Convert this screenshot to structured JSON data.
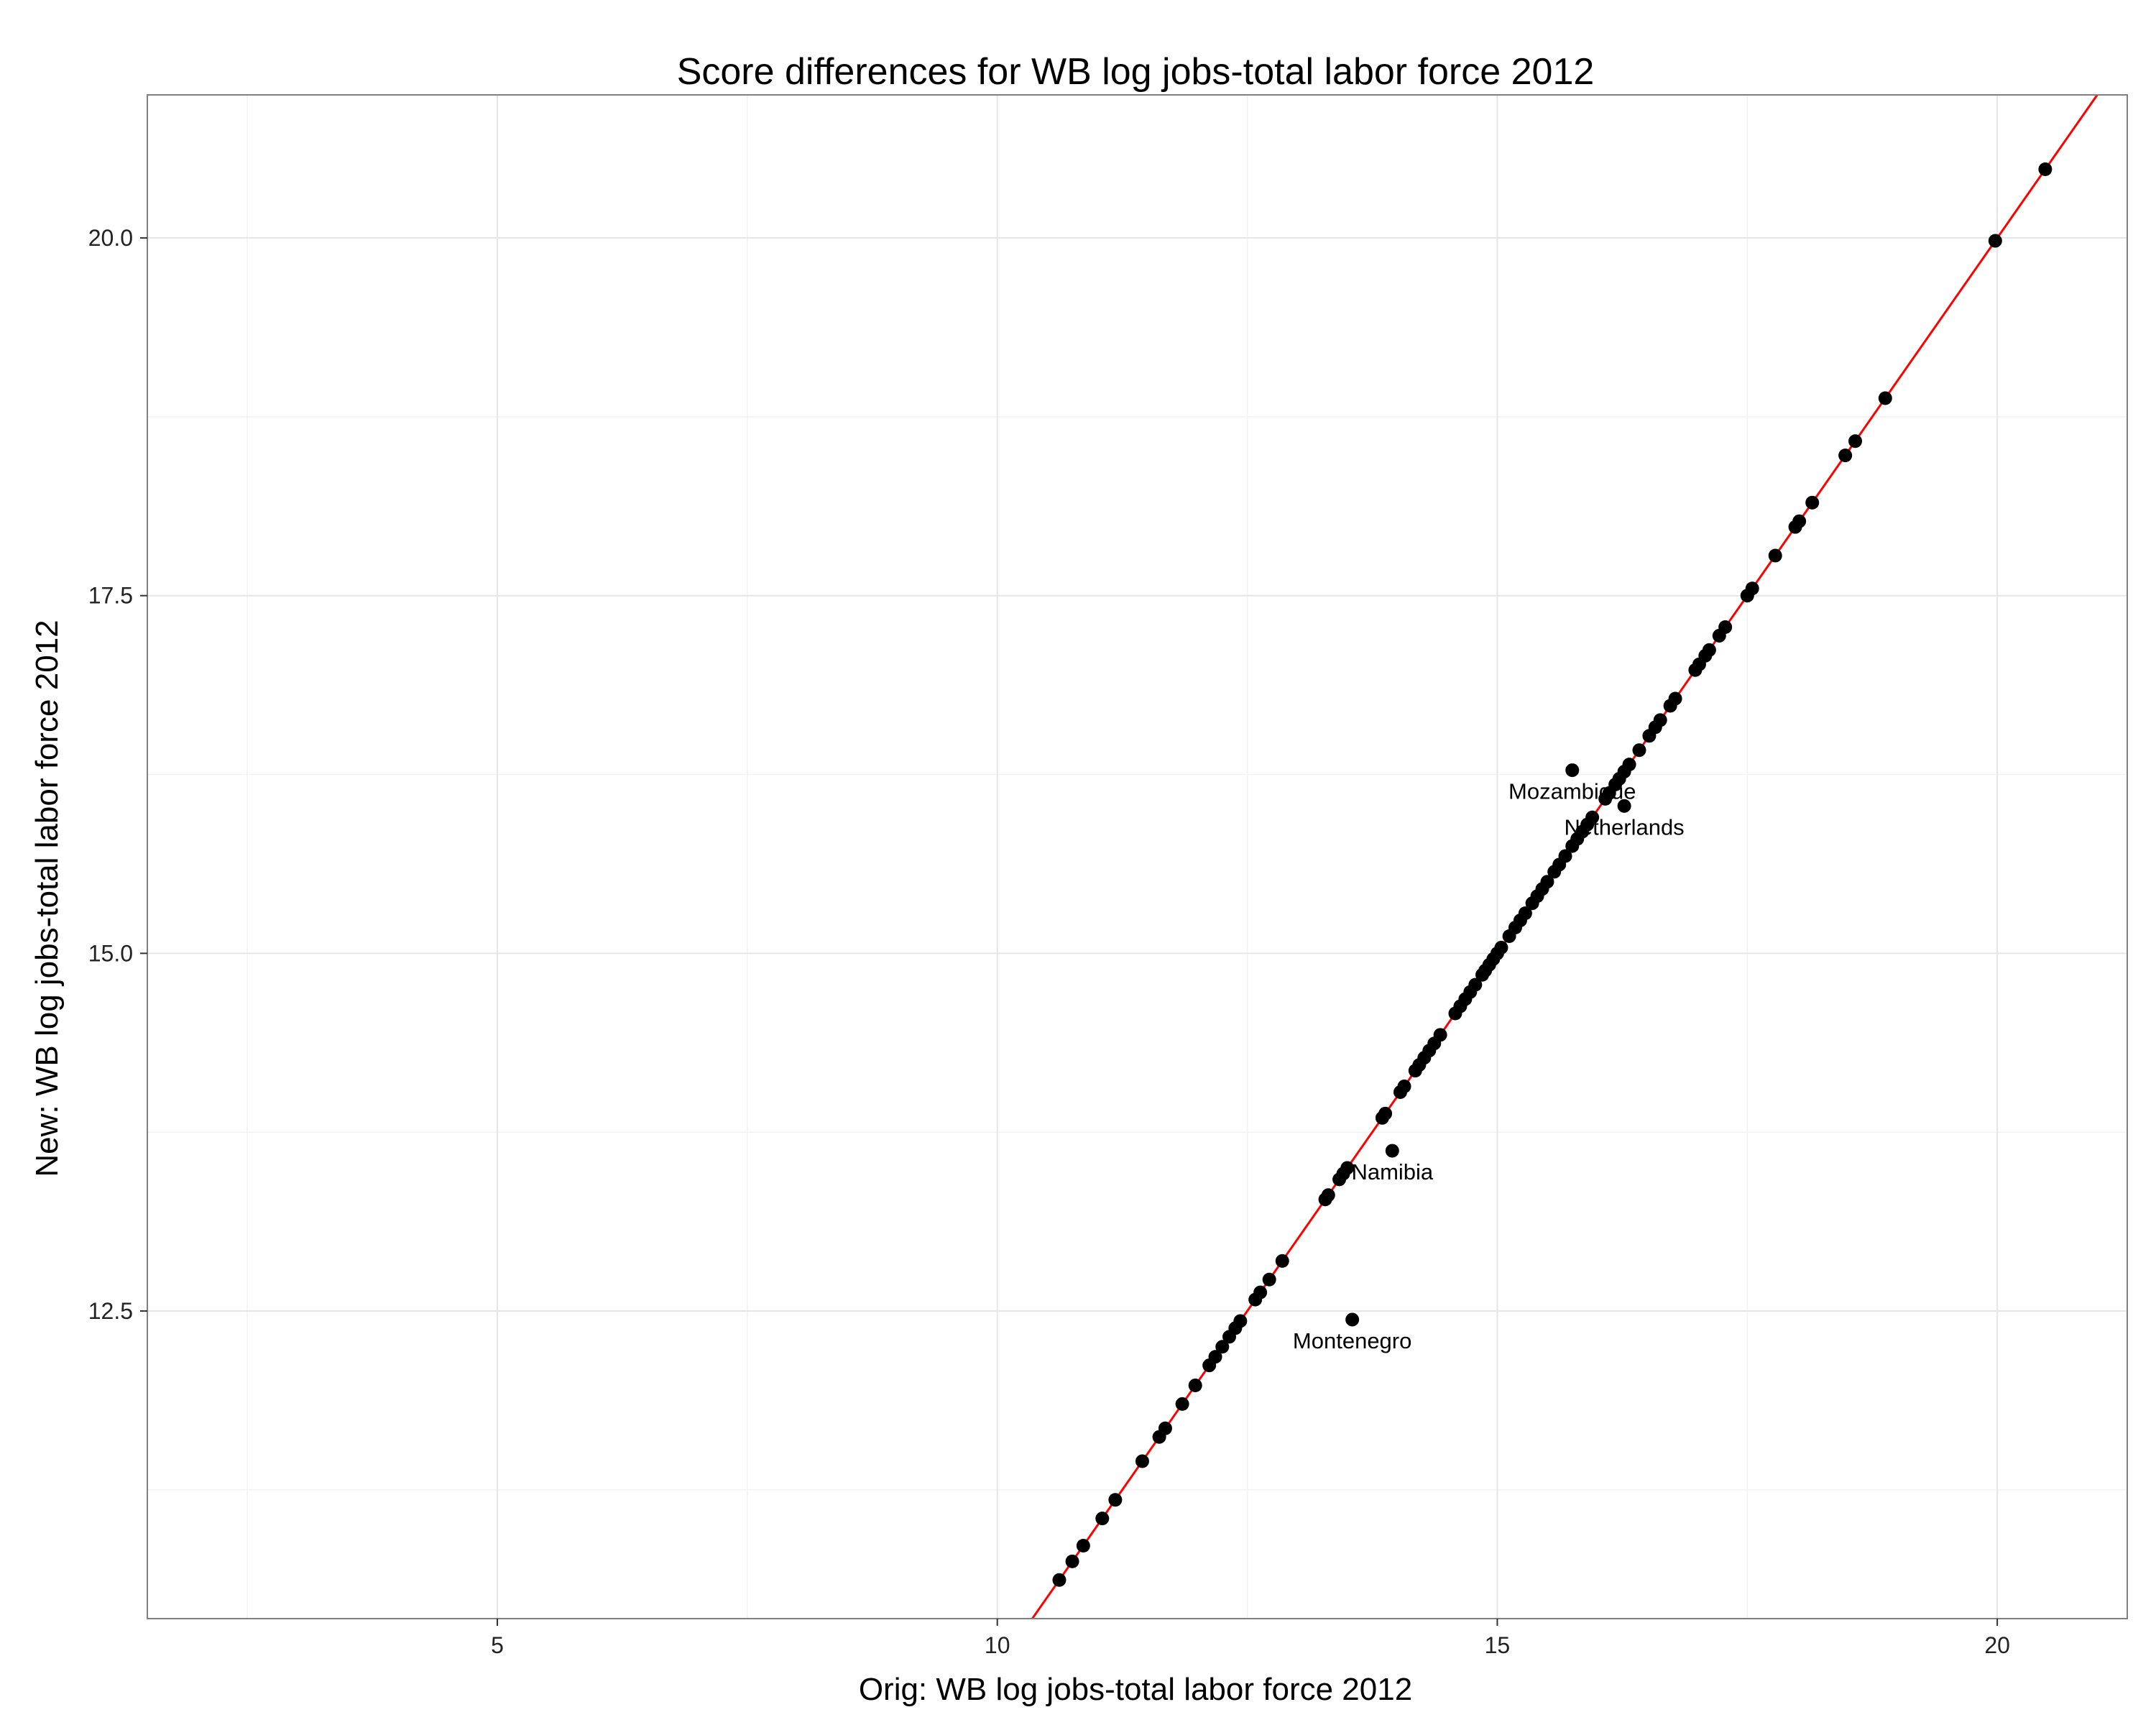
{
  "chart_data": {
    "type": "scatter",
    "title": "Score differences for WB log jobs-total labor force 2012",
    "xlabel": "Orig: WB log jobs-total labor force 2012",
    "ylabel": "New: WB log jobs-total labor force 2012",
    "xlim": [
      1.5,
      21.3
    ],
    "ylim": [
      10.35,
      21.0
    ],
    "x_ticks": [
      5,
      10,
      15,
      20
    ],
    "x_tick_labels": [
      "5",
      "10",
      "15",
      "20"
    ],
    "y_ticks": [
      12.5,
      15.0,
      17.5,
      20.0
    ],
    "y_tick_labels": [
      "12.5",
      "15.0",
      "17.5",
      "20.0"
    ],
    "grid": true,
    "reference_line": {
      "type": "identity",
      "slope": 1,
      "intercept": 0,
      "color": "#ff0000"
    },
    "colors": {
      "points": "#000000",
      "line": "#ff0000",
      "grid_major": "#e6e6e6",
      "grid_minor": "#f2f2f2",
      "panel_border": "#7f7f7f"
    },
    "points": [
      [
        10.62,
        10.62
      ],
      [
        10.75,
        10.75
      ],
      [
        10.86,
        10.86
      ],
      [
        11.05,
        11.05
      ],
      [
        11.18,
        11.18
      ],
      [
        11.45,
        11.45
      ],
      [
        11.62,
        11.62
      ],
      [
        11.68,
        11.68
      ],
      [
        11.85,
        11.85
      ],
      [
        11.98,
        11.98
      ],
      [
        12.12,
        12.12
      ],
      [
        12.18,
        12.18
      ],
      [
        12.25,
        12.25
      ],
      [
        12.32,
        12.32
      ],
      [
        12.38,
        12.38
      ],
      [
        12.43,
        12.43
      ],
      [
        12.58,
        12.58
      ],
      [
        12.63,
        12.63
      ],
      [
        12.72,
        12.72
      ],
      [
        12.85,
        12.85
      ],
      [
        13.28,
        13.28
      ],
      [
        13.31,
        13.31
      ],
      [
        13.42,
        13.42
      ],
      [
        13.46,
        13.46
      ],
      [
        13.5,
        13.5
      ],
      [
        13.85,
        13.85
      ],
      [
        13.88,
        13.88
      ],
      [
        14.03,
        14.03
      ],
      [
        14.07,
        14.07
      ],
      [
        14.18,
        14.18
      ],
      [
        14.22,
        14.22
      ],
      [
        14.27,
        14.27
      ],
      [
        14.32,
        14.32
      ],
      [
        14.37,
        14.37
      ],
      [
        14.43,
        14.43
      ],
      [
        14.58,
        14.58
      ],
      [
        14.63,
        14.63
      ],
      [
        14.68,
        14.68
      ],
      [
        14.73,
        14.73
      ],
      [
        14.78,
        14.78
      ],
      [
        14.85,
        14.85
      ],
      [
        14.88,
        14.88
      ],
      [
        14.92,
        14.92
      ],
      [
        14.96,
        14.96
      ],
      [
        15.0,
        15.0
      ],
      [
        15.04,
        15.04
      ],
      [
        15.12,
        15.12
      ],
      [
        15.18,
        15.18
      ],
      [
        15.23,
        15.23
      ],
      [
        15.28,
        15.28
      ],
      [
        15.35,
        15.35
      ],
      [
        15.4,
        15.4
      ],
      [
        15.45,
        15.45
      ],
      [
        15.5,
        15.5
      ],
      [
        15.57,
        15.57
      ],
      [
        15.62,
        15.62
      ],
      [
        15.68,
        15.68
      ],
      [
        15.75,
        15.75
      ],
      [
        15.8,
        15.8
      ],
      [
        15.85,
        15.85
      ],
      [
        15.9,
        15.9
      ],
      [
        15.95,
        15.95
      ],
      [
        16.08,
        16.08
      ],
      [
        16.12,
        16.12
      ],
      [
        16.18,
        16.18
      ],
      [
        16.22,
        16.22
      ],
      [
        16.27,
        16.27
      ],
      [
        16.32,
        16.32
      ],
      [
        16.42,
        16.42
      ],
      [
        16.52,
        16.52
      ],
      [
        16.58,
        16.58
      ],
      [
        16.63,
        16.63
      ],
      [
        16.73,
        16.73
      ],
      [
        16.78,
        16.78
      ],
      [
        16.98,
        16.98
      ],
      [
        17.02,
        17.02
      ],
      [
        17.08,
        17.08
      ],
      [
        17.12,
        17.12
      ],
      [
        17.22,
        17.22
      ],
      [
        17.28,
        17.28
      ],
      [
        17.5,
        17.5
      ],
      [
        17.55,
        17.55
      ],
      [
        17.78,
        17.78
      ],
      [
        17.98,
        17.98
      ],
      [
        18.02,
        18.02
      ],
      [
        18.15,
        18.15
      ],
      [
        18.48,
        18.48
      ],
      [
        18.58,
        18.58
      ],
      [
        18.88,
        18.88
      ],
      [
        19.98,
        19.98
      ],
      [
        20.48,
        20.48
      ],
      [
        15.75,
        16.28
      ],
      [
        16.27,
        16.03
      ],
      [
        13.95,
        13.62
      ],
      [
        13.55,
        12.44
      ]
    ],
    "labels": [
      {
        "text": "Mozambique",
        "x": 15.75,
        "y": 16.28
      },
      {
        "text": "Netherlands",
        "x": 16.27,
        "y": 16.03
      },
      {
        "text": "Namibia",
        "x": 13.95,
        "y": 13.62
      },
      {
        "text": "Montenegro",
        "x": 13.55,
        "y": 12.44
      }
    ]
  }
}
